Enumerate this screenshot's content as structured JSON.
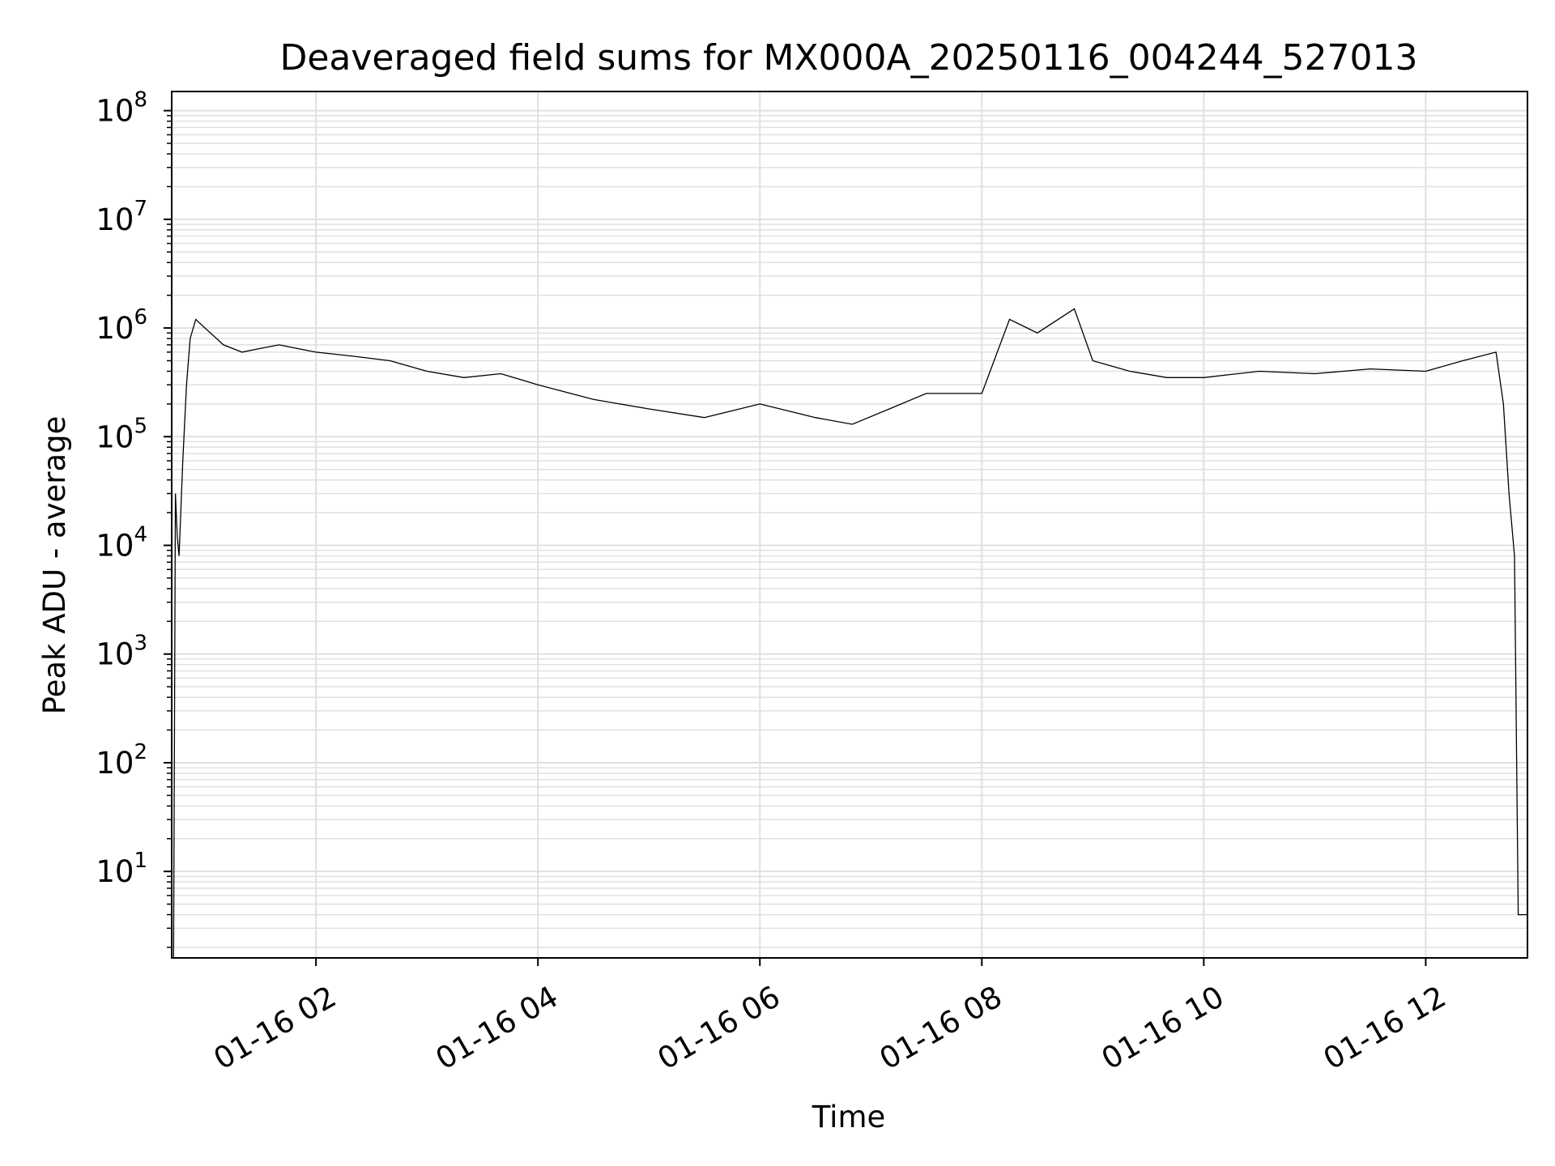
{
  "chart_data": {
    "type": "line",
    "title": "Deaveraged field sums for MX000A_20250116_004244_527013",
    "xlabel": "Time",
    "ylabel": "Peak ADU - average",
    "yscale": "log",
    "xlim": [
      "01-16 00:42",
      "01-16 12:55"
    ],
    "ylim": [
      1.6,
      150000000
    ],
    "grid": true,
    "series_color": "#000000",
    "grid_color": "#e0e0e0",
    "x_ticks": [
      {
        "time": "01-16 02:00",
        "label": "01-16 02"
      },
      {
        "time": "01-16 04:00",
        "label": "01-16 04"
      },
      {
        "time": "01-16 06:00",
        "label": "01-16 06"
      },
      {
        "time": "01-16 08:00",
        "label": "01-16 08"
      },
      {
        "time": "01-16 10:00",
        "label": "01-16 10"
      },
      {
        "time": "01-16 12:00",
        "label": "01-16 12"
      }
    ],
    "y_ticks": [
      {
        "value": 10,
        "base": "10",
        "exp": "1"
      },
      {
        "value": 100,
        "base": "10",
        "exp": "2"
      },
      {
        "value": 1000,
        "base": "10",
        "exp": "3"
      },
      {
        "value": 10000,
        "base": "10",
        "exp": "4"
      },
      {
        "value": 100000,
        "base": "10",
        "exp": "5"
      },
      {
        "value": 1000000,
        "base": "10",
        "exp": "6"
      },
      {
        "value": 10000000,
        "base": "10",
        "exp": "7"
      },
      {
        "value": 100000000,
        "base": "10",
        "exp": "8"
      }
    ],
    "series": [
      {
        "x": [
          "01-16 00:43",
          "01-16 00:44",
          "01-16 00:45",
          "01-16 00:46",
          "01-16 00:48",
          "01-16 00:50",
          "01-16 00:52",
          "01-16 00:55",
          "01-16 01:00",
          "01-16 01:10",
          "01-16 01:20",
          "01-16 01:30",
          "01-16 01:40",
          "01-16 02:00",
          "01-16 02:20",
          "01-16 02:40",
          "01-16 03:00",
          "01-16 03:20",
          "01-16 03:40",
          "01-16 04:00",
          "01-16 04:30",
          "01-16 05:00",
          "01-16 05:30",
          "01-16 06:00",
          "01-16 06:30",
          "01-16 06:50",
          "01-16 07:10",
          "01-16 07:30",
          "01-16 08:00",
          "01-16 08:15",
          "01-16 08:30",
          "01-16 08:50",
          "01-16 09:00",
          "01-16 09:20",
          "01-16 09:40",
          "01-16 10:00",
          "01-16 10:30",
          "01-16 11:00",
          "01-16 11:30",
          "01-16 12:00",
          "01-16 12:20",
          "01-16 12:38",
          "01-16 12:42",
          "01-16 12:45",
          "01-16 12:48",
          "01-16 12:50",
          "01-16 12:51",
          "01-16 12:52",
          "01-16 12:55"
        ],
        "y": [
          1.6,
          30000,
          12000,
          8000,
          60000,
          300000,
          800000,
          1200000,
          1000000,
          700000,
          600000,
          650000,
          700000,
          600000,
          550000,
          500000,
          400000,
          350000,
          380000,
          300000,
          220000,
          180000,
          150000,
          200000,
          150000,
          130000,
          180000,
          250000,
          250000,
          1200000,
          900000,
          1500000,
          500000,
          400000,
          350000,
          350000,
          400000,
          380000,
          420000,
          400000,
          500000,
          600000,
          200000,
          30000,
          8000,
          4,
          4,
          4,
          4
        ]
      }
    ]
  }
}
